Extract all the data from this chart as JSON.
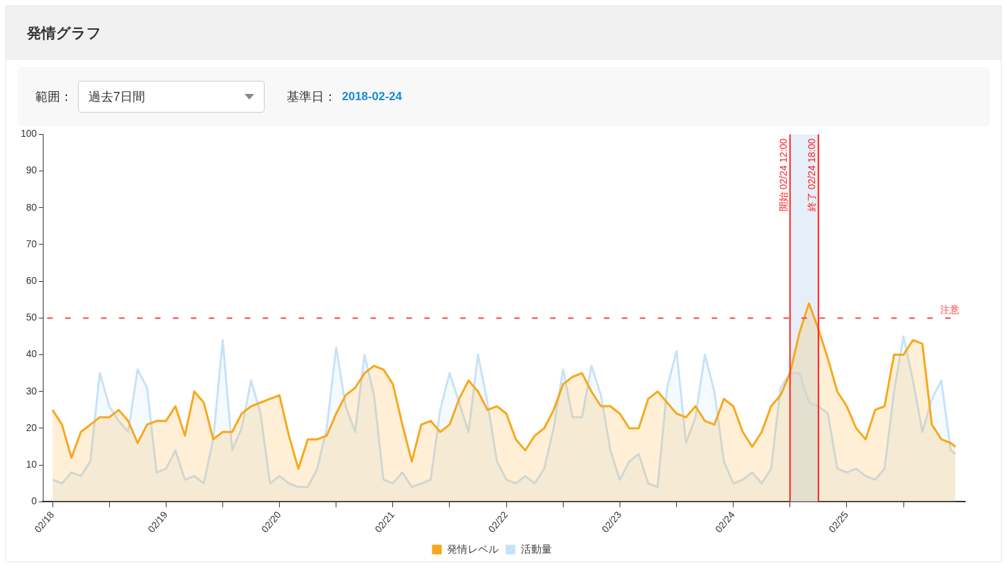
{
  "chart_data": {
    "type": "area",
    "title": "発情グラフ",
    "annotations": [
      "範囲：",
      "過去7日間",
      "基準日：",
      "2018-02-24"
    ],
    "x": [
      "2018-02-18T00:00",
      "2018-02-18T02:00",
      "2018-02-18T04:00",
      "2018-02-18T06:00",
      "2018-02-18T08:00",
      "2018-02-18T10:00",
      "2018-02-18T12:00",
      "2018-02-18T14:00",
      "2018-02-18T16:00",
      "2018-02-18T18:00",
      "2018-02-18T20:00",
      "2018-02-18T22:00",
      "2018-02-19T00:00",
      "2018-02-19T02:00",
      "2018-02-19T04:00",
      "2018-02-19T06:00",
      "2018-02-19T08:00",
      "2018-02-19T10:00",
      "2018-02-19T12:00",
      "2018-02-19T14:00",
      "2018-02-19T16:00",
      "2018-02-19T18:00",
      "2018-02-19T20:00",
      "2018-02-19T22:00",
      "2018-02-20T00:00",
      "2018-02-20T02:00",
      "2018-02-20T04:00",
      "2018-02-20T06:00",
      "2018-02-20T08:00",
      "2018-02-20T10:00",
      "2018-02-20T12:00",
      "2018-02-20T14:00",
      "2018-02-20T16:00",
      "2018-02-20T18:00",
      "2018-02-20T20:00",
      "2018-02-20T22:00",
      "2018-02-21T00:00",
      "2018-02-21T02:00",
      "2018-02-21T04:00",
      "2018-02-21T06:00",
      "2018-02-21T08:00",
      "2018-02-21T10:00",
      "2018-02-21T12:00",
      "2018-02-21T14:00",
      "2018-02-21T16:00",
      "2018-02-21T18:00",
      "2018-02-21T20:00",
      "2018-02-21T22:00",
      "2018-02-22T00:00",
      "2018-02-22T02:00",
      "2018-02-22T04:00",
      "2018-02-22T06:00",
      "2018-02-22T08:00",
      "2018-02-22T10:00",
      "2018-02-22T12:00",
      "2018-02-22T14:00",
      "2018-02-22T16:00",
      "2018-02-22T18:00",
      "2018-02-22T20:00",
      "2018-02-22T22:00",
      "2018-02-23T00:00",
      "2018-02-23T02:00",
      "2018-02-23T04:00",
      "2018-02-23T06:00",
      "2018-02-23T08:00",
      "2018-02-23T10:00",
      "2018-02-23T12:00",
      "2018-02-23T14:00",
      "2018-02-23T16:00",
      "2018-02-23T18:00",
      "2018-02-23T20:00",
      "2018-02-23T22:00",
      "2018-02-24T00:00",
      "2018-02-24T02:00",
      "2018-02-24T04:00",
      "2018-02-24T06:00",
      "2018-02-24T08:00",
      "2018-02-24T10:00",
      "2018-02-24T12:00",
      "2018-02-24T14:00",
      "2018-02-24T16:00",
      "2018-02-24T18:00",
      "2018-02-24T20:00",
      "2018-02-24T22:00",
      "2018-02-25T00:00",
      "2018-02-25T02:00",
      "2018-02-25T04:00",
      "2018-02-25T06:00",
      "2018-02-25T08:00",
      "2018-02-25T10:00",
      "2018-02-25T12:00",
      "2018-02-25T14:00",
      "2018-02-25T16:00",
      "2018-02-25T18:00",
      "2018-02-25T20:00",
      "2018-02-25T22:00",
      "2018-02-25T23:00"
    ],
    "xlim": [
      "2018-02-17T22:00",
      "2018-02-26T01:00"
    ],
    "xticks": [
      {
        "value": "2018-02-18T00:00",
        "label": "02/18"
      },
      {
        "value": "2018-02-18T12:00",
        "label": null
      },
      {
        "value": "2018-02-19T00:00",
        "label": "02/19"
      },
      {
        "value": "2018-02-19T12:00",
        "label": null
      },
      {
        "value": "2018-02-20T00:00",
        "label": "02/20"
      },
      {
        "value": "2018-02-20T12:00",
        "label": null
      },
      {
        "value": "2018-02-21T00:00",
        "label": "02/21"
      },
      {
        "value": "2018-02-21T12:00",
        "label": null
      },
      {
        "value": "2018-02-22T00:00",
        "label": "02/22"
      },
      {
        "value": "2018-02-22T12:00",
        "label": null
      },
      {
        "value": "2018-02-23T00:00",
        "label": "02/23"
      },
      {
        "value": "2018-02-23T12:00",
        "label": null
      },
      {
        "value": "2018-02-24T00:00",
        "label": "02/24"
      },
      {
        "value": "2018-02-24T12:00",
        "label": null
      },
      {
        "value": "2018-02-25T00:00",
        "label": "02/25"
      },
      {
        "value": "2018-02-25T12:00",
        "label": null
      }
    ],
    "ylim": [
      0,
      100
    ],
    "yticks": [
      0,
      10,
      20,
      30,
      40,
      50,
      60,
      70,
      80,
      90,
      100
    ],
    "grid": false,
    "legend": "bottom",
    "marker": "none",
    "series": [
      {
        "name": "発情レベル",
        "color": "#f7a81b",
        "values": [
          25,
          21,
          12,
          19,
          21,
          23,
          23,
          25,
          22,
          16,
          21,
          22,
          22,
          26,
          18,
          30,
          27,
          17,
          19,
          19,
          24,
          26,
          27,
          28,
          29,
          18,
          9,
          17,
          17,
          18,
          24,
          29,
          31,
          35,
          37,
          36,
          32,
          21,
          11,
          21,
          22,
          19,
          21,
          28,
          33,
          30,
          25,
          26,
          24,
          17,
          14,
          18,
          20,
          25,
          32,
          34,
          35,
          30,
          26,
          26,
          24,
          20,
          20,
          28,
          30,
          27,
          24,
          23,
          26,
          22,
          21,
          28,
          26,
          19,
          15,
          19,
          26,
          29,
          35,
          46,
          54,
          47,
          39,
          30,
          26,
          20,
          17,
          25,
          26,
          40,
          40,
          44,
          43,
          21,
          17,
          16,
          15
        ]
      },
      {
        "name": "活動量",
        "color": "#c6e2f8",
        "values": [
          6,
          5,
          8,
          7,
          11,
          35,
          26,
          22,
          19,
          36,
          31,
          8,
          9,
          14,
          6,
          7,
          5,
          17,
          44,
          14,
          20,
          33,
          24,
          5,
          7,
          5,
          4,
          4,
          9,
          20,
          42,
          26,
          19,
          40,
          29,
          6,
          5,
          8,
          4,
          5,
          6,
          25,
          35,
          27,
          19,
          40,
          27,
          11,
          6,
          5,
          7,
          5,
          9,
          20,
          36,
          23,
          23,
          37,
          29,
          14,
          6,
          11,
          13,
          5,
          4,
          31,
          41,
          16,
          23,
          40,
          30,
          11,
          5,
          6,
          8,
          5,
          9,
          31,
          35,
          35,
          27,
          26,
          24,
          9,
          8,
          9,
          7,
          6,
          9,
          30,
          45,
          33,
          19,
          28,
          33,
          14,
          13
        ]
      }
    ],
    "ref_lines": [
      {
        "axis": "x",
        "value": "2018-02-24T12:00",
        "label": "開始 02/24 12:00",
        "color": "#ff2020"
      },
      {
        "axis": "x",
        "value": "2018-02-24T18:00",
        "label": "終了 02/24 18:00",
        "color": "#ff2020"
      },
      {
        "axis": "y",
        "value": 50,
        "label": "注意",
        "color": "#ff4040",
        "line_style": "dashed"
      }
    ],
    "bands": [
      {
        "axis": "x",
        "from": "2018-02-24T12:00",
        "to": "2018-02-24T18:00",
        "color": "#dbe8f4"
      }
    ]
  }
}
